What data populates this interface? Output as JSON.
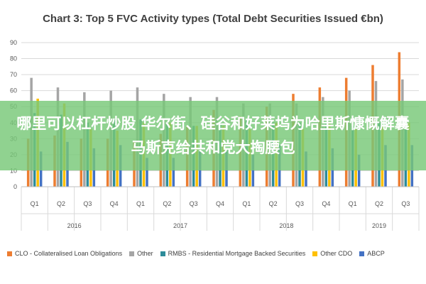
{
  "overlay": {
    "text": "哪里可以杠杆炒股 华尔街、硅谷和好莱坞为哈里斯慷慨解囊 马斯克给共和党大掏腰包"
  },
  "chart_data": {
    "type": "bar",
    "title": "Chart 3: Top 5 FVC Activity types (Total Debt Securities Issued €bn)",
    "ylim": [
      0,
      90
    ],
    "yticks": [
      0,
      10,
      20,
      30,
      40,
      50,
      60,
      70,
      80,
      90
    ],
    "grid": true,
    "legend_position": "bottom",
    "categories": [
      "Q1",
      "Q2",
      "Q3",
      "Q4",
      "Q1",
      "Q2",
      "Q3",
      "Q4",
      "Q1",
      "Q2",
      "Q3",
      "Q4",
      "Q1",
      "Q2",
      "Q3"
    ],
    "years": [
      {
        "label": "2016",
        "count": 4
      },
      {
        "label": "2017",
        "count": 4
      },
      {
        "label": "2018",
        "count": 4
      },
      {
        "label": "2019",
        "count": 3
      }
    ],
    "series": [
      {
        "name": "CLO - Collateralised Loan Obligations",
        "color": "#ED7D31",
        "values": [
          30,
          32,
          30,
          30,
          28,
          33,
          38,
          48,
          44,
          50,
          58,
          62,
          68,
          76,
          84
        ]
      },
      {
        "name": "Other",
        "color": "#A5A5A5",
        "values": [
          68,
          62,
          59,
          60,
          62,
          58,
          56,
          56,
          52,
          52,
          52,
          56,
          60,
          66,
          67
        ]
      },
      {
        "name": "RMBS - Residential Mortgage Backed Securities",
        "color": "#2E8C9A",
        "values": [
          46,
          45,
          40,
          42,
          42,
          40,
          38,
          40,
          42,
          40,
          40,
          40,
          38,
          40,
          42
        ]
      },
      {
        "name": "Other CDO",
        "color": "#FFC000",
        "values": [
          55,
          52,
          36,
          35,
          40,
          40,
          38,
          38,
          36,
          40,
          36,
          40,
          36,
          38,
          40
        ]
      },
      {
        "name": "ABCP",
        "color": "#4472C4",
        "values": [
          22,
          28,
          24,
          26,
          18,
          18,
          22,
          24,
          20,
          26,
          22,
          24,
          20,
          26,
          26
        ]
      }
    ]
  }
}
